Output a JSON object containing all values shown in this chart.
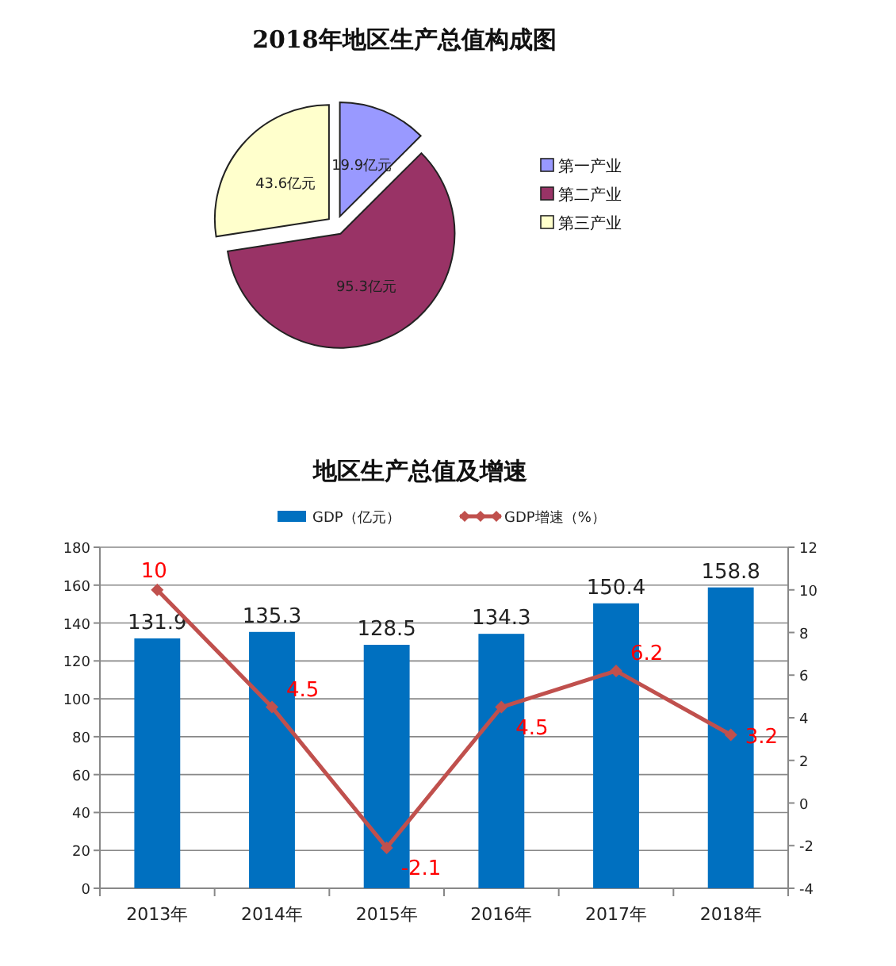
{
  "chart_data": [
    {
      "type": "pie",
      "title": "2018年地区生产总值构成图",
      "categories": [
        "第一产业",
        "第二产业",
        "第三产业"
      ],
      "values": [
        19.9,
        95.3,
        43.6
      ],
      "value_labels": [
        "19.9亿元",
        "95.3亿元",
        "43.6亿元"
      ],
      "colors": [
        "#9999ff",
        "#993366",
        "#ffffcc"
      ],
      "legend": "right"
    },
    {
      "type": "bar",
      "title": "地区生产总值及增速",
      "categories": [
        "2013年",
        "2014年",
        "2015年",
        "2016年",
        "2017年",
        "2018年"
      ],
      "series": [
        {
          "name": "GDP（亿元）",
          "type": "bar",
          "color": "#0070c0",
          "values": [
            131.9,
            135.3,
            128.5,
            134.3,
            150.4,
            158.8
          ]
        },
        {
          "name": "GDP增速（%）",
          "type": "line",
          "axis": "y2",
          "color": "#c0504d",
          "marker": "diamond",
          "values": [
            10,
            4.5,
            -2.1,
            4.5,
            6.2,
            3.2
          ]
        }
      ],
      "ylim": [
        0,
        180
      ],
      "yticks": [
        0,
        20,
        40,
        60,
        80,
        100,
        120,
        140,
        160,
        180
      ],
      "y2lim": [
        -4,
        12
      ],
      "y2ticks": [
        -4,
        -2,
        0,
        2,
        4,
        6,
        8,
        10,
        12
      ],
      "grid": "y",
      "legend": "top",
      "data_labels": true
    }
  ]
}
